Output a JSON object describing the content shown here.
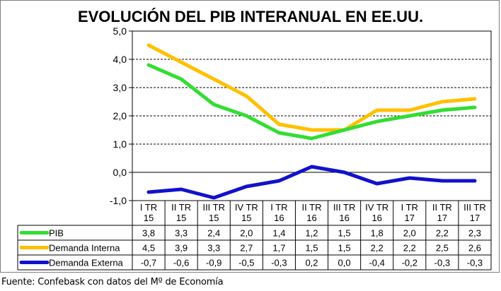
{
  "chart_data": {
    "type": "line",
    "title": "EVOLUCIÓN DEL PIB INTERANUAL  EN EE.UU.",
    "categories": [
      [
        "I TR",
        "15"
      ],
      [
        "II TR",
        "15"
      ],
      [
        "III TR",
        "15"
      ],
      [
        "IV TR",
        "15"
      ],
      [
        "I TR",
        "16"
      ],
      [
        "II TR",
        "16"
      ],
      [
        "III TR",
        "16"
      ],
      [
        "IV TR",
        "16"
      ],
      [
        "I TR",
        "17"
      ],
      [
        "II TR",
        "17"
      ],
      [
        "III TR",
        "17"
      ]
    ],
    "ylim": [
      -1.0,
      5.0
    ],
    "yticks": [
      -1.0,
      0.0,
      1.0,
      2.0,
      3.0,
      4.0,
      5.0
    ],
    "ytick_labels": [
      "-1,0",
      "0,0",
      "1,0",
      "2,0",
      "3,0",
      "4,0",
      "5,0"
    ],
    "grid": "horizontal-dashed",
    "legend_placement": "data-table",
    "series": [
      {
        "name": "PIB",
        "color": "#33dd33",
        "values": [
          3.8,
          3.3,
          2.4,
          2.0,
          1.4,
          1.2,
          1.5,
          1.8,
          2.0,
          2.2,
          2.3
        ],
        "labels": [
          "3,8",
          "3,3",
          "2,4",
          "2,0",
          "1,4",
          "1,2",
          "1,5",
          "1,8",
          "2,0",
          "2,2",
          "2,3"
        ]
      },
      {
        "name": "Demanda Interna",
        "color": "#ffc000",
        "values": [
          4.5,
          3.9,
          3.3,
          2.7,
          1.7,
          1.5,
          1.5,
          2.2,
          2.2,
          2.5,
          2.6
        ],
        "labels": [
          "4,5",
          "3,9",
          "3,3",
          "2,7",
          "1,7",
          "1,5",
          "1,5",
          "2,2",
          "2,2",
          "2,5",
          "2,6"
        ]
      },
      {
        "name": "Demanda Externa",
        "color": "#1111cc",
        "values": [
          -0.7,
          -0.6,
          -0.9,
          -0.5,
          -0.3,
          0.2,
          0.0,
          -0.4,
          -0.2,
          -0.3,
          -0.3
        ],
        "labels": [
          "-0,7",
          "-0,6",
          "-0,9",
          "-0,5",
          "-0,3",
          "0,2",
          "0,0",
          "-0,4",
          "-0,2",
          "-0,3",
          "-0,3"
        ]
      }
    ]
  },
  "source": "Fuente: Confebask con datos del Mº de Economía"
}
